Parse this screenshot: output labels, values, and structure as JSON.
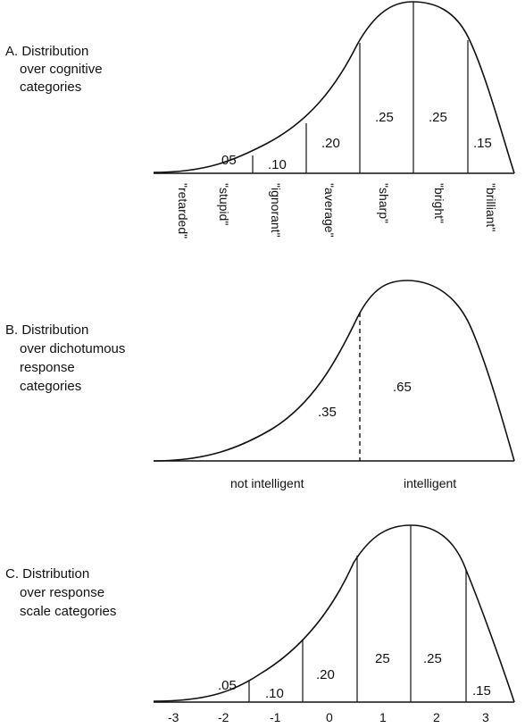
{
  "panels": [
    {
      "id": "A",
      "title_lines": [
        "A. Distribution",
        "over cognitive",
        "categories"
      ],
      "proportions": [
        ".05",
        ".10",
        ".20",
        ".25",
        ".25",
        ".15"
      ],
      "proportion_labels": [
        "05",
        ".10",
        ".20",
        ".25",
        ".25",
        ".15"
      ],
      "categories": [
        "\"retarded\"",
        "\"stupid\"",
        "\"ignorant\"",
        "\"average\"",
        "\"sharp\"",
        "\"bright\"",
        "\"brilliant\""
      ]
    },
    {
      "id": "B",
      "title_lines": [
        "B. Distribution",
        "over dichotumous",
        "response",
        "categories"
      ],
      "proportion_labels": [
        ".35",
        ".65"
      ],
      "categories": [
        "not intelligent",
        "intelligent"
      ]
    },
    {
      "id": "C",
      "title_lines": [
        "C. Distribution",
        "over response",
        "scale categories"
      ],
      "proportion_labels": [
        ".05",
        ".10",
        ".20",
        "25",
        ".25",
        ".15"
      ],
      "categories": [
        "-3",
        "-2",
        "-1",
        "0",
        "1",
        "2",
        "3"
      ]
    }
  ]
}
